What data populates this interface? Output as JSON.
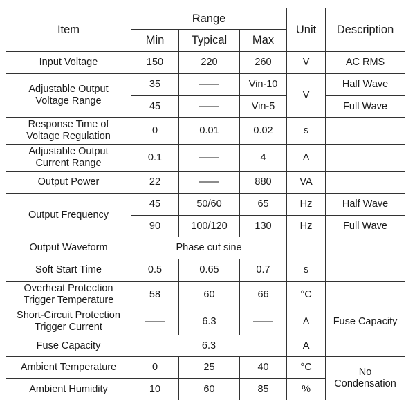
{
  "header": {
    "item": "Item",
    "range": "Range",
    "min": "Min",
    "typical": "Typical",
    "max": "Max",
    "unit": "Unit",
    "description": "Description"
  },
  "rows": {
    "input_voltage": {
      "item": "Input Voltage",
      "min": "150",
      "typical": "220",
      "max": "260",
      "unit": "V",
      "description": "AC RMS"
    },
    "adjustable_output_voltage": {
      "item": "Adjustable Output\nVoltage Range",
      "unit": "V",
      "half": {
        "min": "35",
        "typical": "——",
        "max": "Vin-10",
        "description": "Half Wave"
      },
      "full": {
        "min": "45",
        "typical": "——",
        "max": "Vin-5",
        "description": "Full Wave"
      }
    },
    "response_time": {
      "item": "Response Time of\nVoltage Regulation",
      "min": "0",
      "typical": "0.01",
      "max": "0.02",
      "unit": "s",
      "description": ""
    },
    "adjustable_output_current": {
      "item": "Adjustable Output\nCurrent Range",
      "min": "0.1",
      "typical": "——",
      "max": "4",
      "unit": "A",
      "description": ""
    },
    "output_power": {
      "item": "Output Power",
      "min": "22",
      "typical": "——",
      "max": "880",
      "unit": "VA",
      "description": ""
    },
    "output_frequency": {
      "item": "Output Frequency",
      "half": {
        "min": "45",
        "typical": "50/60",
        "max": "65",
        "unit": "Hz",
        "description": "Half Wave"
      },
      "full": {
        "min": "90",
        "typical": "100/120",
        "max": "130",
        "unit": "Hz",
        "description": "Full Wave"
      }
    },
    "output_waveform": {
      "item": "Output Waveform",
      "value": "Phase cut sine"
    },
    "soft_start_time": {
      "item": "Soft Start Time",
      "min": "0.5",
      "typical": "0.65",
      "max": "0.7",
      "unit": "s",
      "description": ""
    },
    "overheat_protection": {
      "item": "Overheat Protection\nTrigger Temperature",
      "min": "58",
      "typical": "60",
      "max": "66",
      "unit": "°C",
      "description": ""
    },
    "short_circuit_protection": {
      "item": "Short-Circuit Protection\nTrigger Current",
      "min": "——",
      "typical": "6.3",
      "max": "——",
      "unit": "A",
      "description": "Fuse Capacity"
    },
    "fuse_capacity": {
      "item": "Fuse Capacity",
      "value": "6.3",
      "unit": "A",
      "description": ""
    },
    "ambient_temperature": {
      "item": "Ambient Temperature",
      "min": "0",
      "typical": "25",
      "max": "40",
      "unit": "°C"
    },
    "ambient_humidity": {
      "item": "Ambient Humidity",
      "min": "10",
      "typical": "60",
      "max": "85",
      "unit": "%"
    },
    "ambient_description": "No\nCondensation"
  }
}
